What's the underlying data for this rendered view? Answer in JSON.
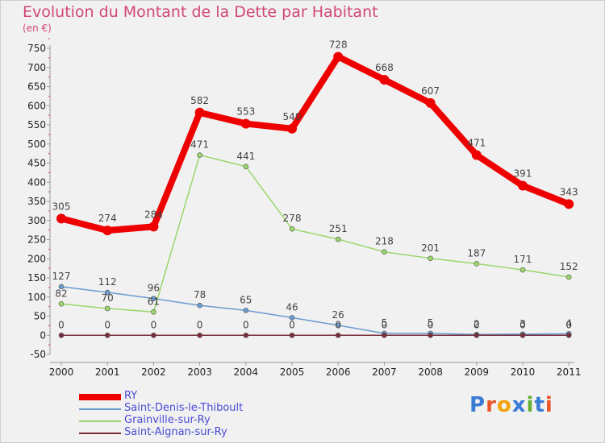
{
  "header": {
    "title": "Evolution du Montant de la Dette par Habitant",
    "unit": "(en €)"
  },
  "logo": {
    "text": "Proxiti",
    "colors": [
      "#3a7bd5",
      "#e8562a",
      "#f0a30a",
      "#3a7bd5",
      "#66b032",
      "#3a7bd5",
      "#e8562a"
    ]
  },
  "chart_data": {
    "type": "line",
    "title": "Evolution du Montant de la Dette par Habitant",
    "subtitle": "(en €)",
    "xlabel": "",
    "ylabel": "",
    "x": [
      "2000",
      "2001",
      "2002",
      "2003",
      "2004",
      "2005",
      "2006",
      "2007",
      "2008",
      "2009",
      "2010",
      "2011"
    ],
    "ylim": [
      -50,
      750
    ],
    "ystep": 50,
    "grid": false,
    "legend_position": "bottom-left",
    "series": [
      {
        "name": "RY",
        "color": "#ee0000",
        "width": "thick",
        "values": [
          305,
          274,
          284,
          582,
          553,
          540,
          728,
          668,
          607,
          471,
          391,
          343
        ],
        "labels": [
          "305",
          "274",
          "284",
          "582",
          "553",
          "540",
          "728",
          "668",
          "607",
          "471",
          "391",
          "343"
        ]
      },
      {
        "name": "Saint-Denis-le-Thiboult",
        "color": "#6a9ccf",
        "width": "thin",
        "values": [
          127,
          112,
          96,
          78,
          65,
          46,
          26,
          5,
          5,
          2,
          3,
          4
        ],
        "labels": [
          "127",
          "112",
          "96",
          "78",
          "65",
          "46",
          "26",
          "5",
          "5",
          "2",
          "3",
          "4"
        ]
      },
      {
        "name": "Grainville-sur-Ry",
        "color": "#9bd66a",
        "width": "thin",
        "values": [
          82,
          70,
          61,
          471,
          441,
          278,
          251,
          218,
          201,
          187,
          171,
          152
        ],
        "labels": [
          "82",
          "70",
          "61",
          "471",
          "441",
          "278",
          "251",
          "218",
          "201",
          "187",
          "171",
          "152"
        ]
      },
      {
        "name": "Saint-Aignan-sur-Ry",
        "color": "#7a2d3c",
        "width": "thin",
        "values": [
          0,
          0,
          0,
          0,
          0,
          0,
          0,
          0,
          0,
          0,
          0,
          0
        ],
        "labels": [
          "0",
          "0",
          "0",
          "0",
          "0",
          "0",
          "0",
          "0",
          "0",
          "0",
          "0",
          "0"
        ]
      }
    ]
  }
}
